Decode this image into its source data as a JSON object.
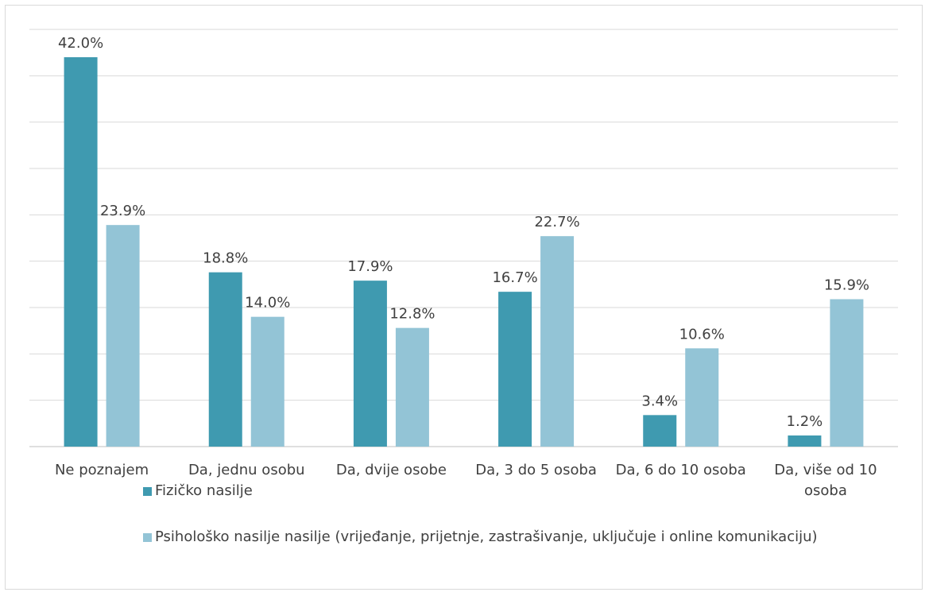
{
  "chart_data": {
    "type": "bar",
    "categories": [
      "Ne poznajem",
      "Da, jednu osobu",
      "Da, dvije osobe",
      "Da, 3 do 5 osoba",
      "Da, 6 do 10 osoba",
      "Da, više od 10 osoba"
    ],
    "series": [
      {
        "name": "Fizičko nasilje",
        "color": "#3f9ab0",
        "values": [
          42.0,
          18.8,
          17.9,
          16.7,
          3.4,
          1.2
        ],
        "value_labels": [
          "42.0%",
          "18.8%",
          "17.9%",
          "16.7%",
          "3.4%",
          "1.2%"
        ]
      },
      {
        "name": "Psihološko nasilje nasilje (vrijeđanje, prijetnje, zastrašivanje, uključuje i online komunikaciju)",
        "color": "#93c4d6",
        "values": [
          23.9,
          14.0,
          12.8,
          22.7,
          10.6,
          15.9
        ],
        "value_labels": [
          "23.9%",
          "14.0%",
          "12.8%",
          "22.7%",
          "10.6%",
          "15.9%"
        ]
      }
    ],
    "ylim": [
      0,
      45
    ],
    "yticks": [
      0,
      5,
      10,
      15,
      20,
      25,
      30,
      35,
      40,
      45
    ],
    "grid": true,
    "legend": "bottom"
  }
}
